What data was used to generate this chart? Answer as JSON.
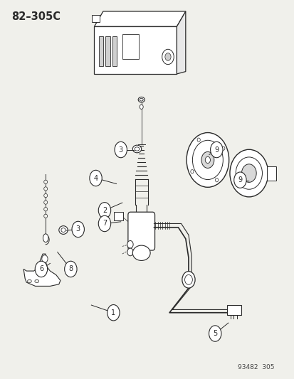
{
  "fig_width": 4.14,
  "fig_height": 5.33,
  "dpi": 100,
  "background_color": "#f0f0eb",
  "title_text": "82–305C",
  "watermark_text": "93482  305",
  "line_color": "#2a2a2a",
  "label_configs": [
    [
      1,
      0.385,
      0.175,
      0.31,
      0.195
    ],
    [
      2,
      0.355,
      0.445,
      0.415,
      0.465
    ],
    [
      3,
      0.41,
      0.605,
      0.455,
      0.605
    ],
    [
      3,
      0.265,
      0.395,
      0.225,
      0.392
    ],
    [
      4,
      0.325,
      0.53,
      0.395,
      0.515
    ],
    [
      5,
      0.73,
      0.12,
      0.775,
      0.148
    ],
    [
      6,
      0.14,
      0.29,
      0.17,
      0.305
    ],
    [
      7,
      0.355,
      0.41,
      0.41,
      0.415
    ],
    [
      8,
      0.24,
      0.29,
      0.195,
      0.335
    ],
    [
      9,
      0.735,
      0.605,
      0.71,
      0.592
    ],
    [
      9,
      0.815,
      0.525,
      0.845,
      0.522
    ]
  ]
}
